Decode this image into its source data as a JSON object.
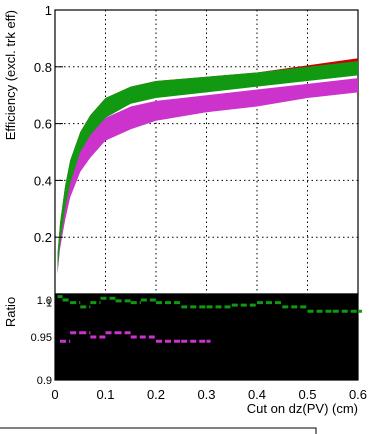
{
  "chart_data": [
    {
      "type": "area",
      "panel": "efficiency",
      "ylabel": "Efficiency (excl. trk eff)",
      "xlim": [
        0,
        0.6
      ],
      "ylim": [
        0,
        1
      ],
      "yticks": [
        "0.2",
        "0.4",
        "0.6",
        "0.8",
        "1"
      ],
      "grid": true,
      "series": [
        {
          "color": "#cc0000",
          "x": [
            0.005,
            0.01,
            0.02,
            0.03,
            0.05,
            0.07,
            0.1,
            0.15,
            0.2,
            0.3,
            0.4,
            0.5,
            0.6
          ],
          "upper": [
            0.14,
            0.25,
            0.38,
            0.47,
            0.57,
            0.63,
            0.69,
            0.73,
            0.75,
            0.765,
            0.78,
            0.805,
            0.83
          ],
          "lower": [
            0.08,
            0.18,
            0.3,
            0.39,
            0.5,
            0.56,
            0.63,
            0.68,
            0.7,
            0.72,
            0.74,
            0.76,
            0.78
          ]
        },
        {
          "color": "#cc33cc",
          "x": [
            0.005,
            0.01,
            0.02,
            0.03,
            0.05,
            0.07,
            0.1,
            0.15,
            0.2,
            0.3,
            0.4,
            0.5,
            0.6
          ],
          "upper": [
            0.13,
            0.23,
            0.35,
            0.44,
            0.53,
            0.58,
            0.62,
            0.66,
            0.68,
            0.7,
            0.72,
            0.74,
            0.76
          ],
          "lower": [
            0.07,
            0.16,
            0.26,
            0.34,
            0.43,
            0.48,
            0.54,
            0.58,
            0.61,
            0.64,
            0.66,
            0.69,
            0.71
          ]
        },
        {
          "color": "#119911",
          "x": [
            0.005,
            0.01,
            0.02,
            0.03,
            0.05,
            0.07,
            0.1,
            0.15,
            0.2,
            0.3,
            0.4,
            0.5,
            0.6
          ],
          "upper": [
            0.14,
            0.25,
            0.38,
            0.47,
            0.57,
            0.63,
            0.69,
            0.73,
            0.75,
            0.765,
            0.78,
            0.8,
            0.82
          ],
          "lower": [
            0.08,
            0.18,
            0.3,
            0.39,
            0.5,
            0.56,
            0.62,
            0.67,
            0.69,
            0.71,
            0.73,
            0.75,
            0.77
          ]
        }
      ]
    },
    {
      "type": "line",
      "panel": "ratio",
      "ylabel": "Ratio",
      "xlabel": "Cut on dz(PV) (cm)",
      "xlim": [
        0,
        0.6
      ],
      "ylim": [
        0.9,
        1.0
      ],
      "yticks": [
        "0.9",
        "0.95",
        "1",
        "1.0"
      ],
      "xticks": [
        "0",
        "0.1",
        "0.2",
        "0.3",
        "0.4",
        "0.5",
        "0.6"
      ],
      "background": "#000000",
      "series": [
        {
          "color": "#119911",
          "x": [
            0.005,
            0.015,
            0.03,
            0.05,
            0.07,
            0.09,
            0.12,
            0.15,
            0.17,
            0.2,
            0.25,
            0.3,
            0.35,
            0.4,
            0.45,
            0.5,
            0.55,
            0.6
          ],
          "y": [
            0.997,
            0.993,
            0.99,
            0.985,
            0.99,
            0.995,
            0.992,
            0.99,
            0.993,
            0.99,
            0.985,
            0.985,
            0.987,
            0.99,
            0.985,
            0.98,
            0.98,
            0.98
          ]
        },
        {
          "color": "#cc33cc",
          "x": [
            0.01,
            0.03,
            0.05,
            0.07,
            0.1,
            0.12,
            0.15,
            0.2,
            0.25,
            0.3
          ],
          "y": [
            0.945,
            0.955,
            0.955,
            0.95,
            0.955,
            0.955,
            0.95,
            0.945,
            0.945,
            0.945
          ]
        }
      ]
    }
  ]
}
